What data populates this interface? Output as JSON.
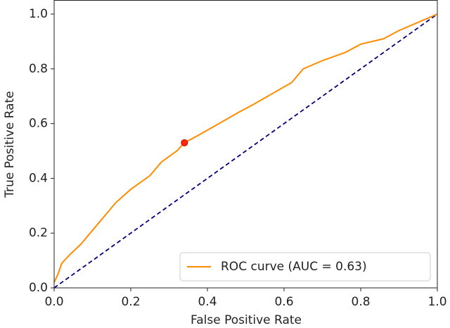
{
  "chart_data": {
    "type": "line",
    "xlabel": "False Positive Rate",
    "ylabel": "True Positive Rate",
    "xlim": [
      0,
      1
    ],
    "ylim": [
      0,
      1.05
    ],
    "xticks": [
      {
        "value": 0,
        "label": "0.0"
      },
      {
        "value": 0.2,
        "label": "0.2"
      },
      {
        "value": 0.4,
        "label": "0.4"
      },
      {
        "value": 0.6,
        "label": "0.6"
      },
      {
        "value": 0.8,
        "label": "0.8"
      },
      {
        "value": 1,
        "label": "1.0"
      }
    ],
    "yticks": [
      {
        "value": 0,
        "label": "0.0"
      },
      {
        "value": 0.2,
        "label": "0.2"
      },
      {
        "value": 0.4,
        "label": "0.4"
      },
      {
        "value": 0.6,
        "label": "0.6"
      },
      {
        "value": 0.8,
        "label": "0.8"
      },
      {
        "value": 1,
        "label": "1.0"
      }
    ],
    "series": [
      {
        "name": "ROC curve (AUC = 0.63)",
        "color": "#ff8c00",
        "x": [
          0,
          0.01,
          0.02,
          0.04,
          0.07,
          0.1,
          0.13,
          0.16,
          0.2,
          0.25,
          0.28,
          0.32,
          0.34,
          0.38,
          0.43,
          0.48,
          0.52,
          0.57,
          0.62,
          0.65,
          0.7,
          0.76,
          0.8,
          0.86,
          0.9,
          0.95,
          1
        ],
        "values": [
          0.02,
          0.05,
          0.09,
          0.12,
          0.16,
          0.21,
          0.26,
          0.31,
          0.36,
          0.41,
          0.46,
          0.5,
          0.53,
          0.56,
          0.6,
          0.64,
          0.67,
          0.71,
          0.75,
          0.8,
          0.83,
          0.86,
          0.89,
          0.91,
          0.94,
          0.97,
          1
        ]
      }
    ],
    "diagonal": {
      "x": [
        0,
        1
      ],
      "values": [
        0,
        1
      ],
      "color": "#000080"
    },
    "marker": {
      "x": 0.34,
      "y": 0.53,
      "color": "#ff2a00"
    },
    "legend": "lower right"
  }
}
